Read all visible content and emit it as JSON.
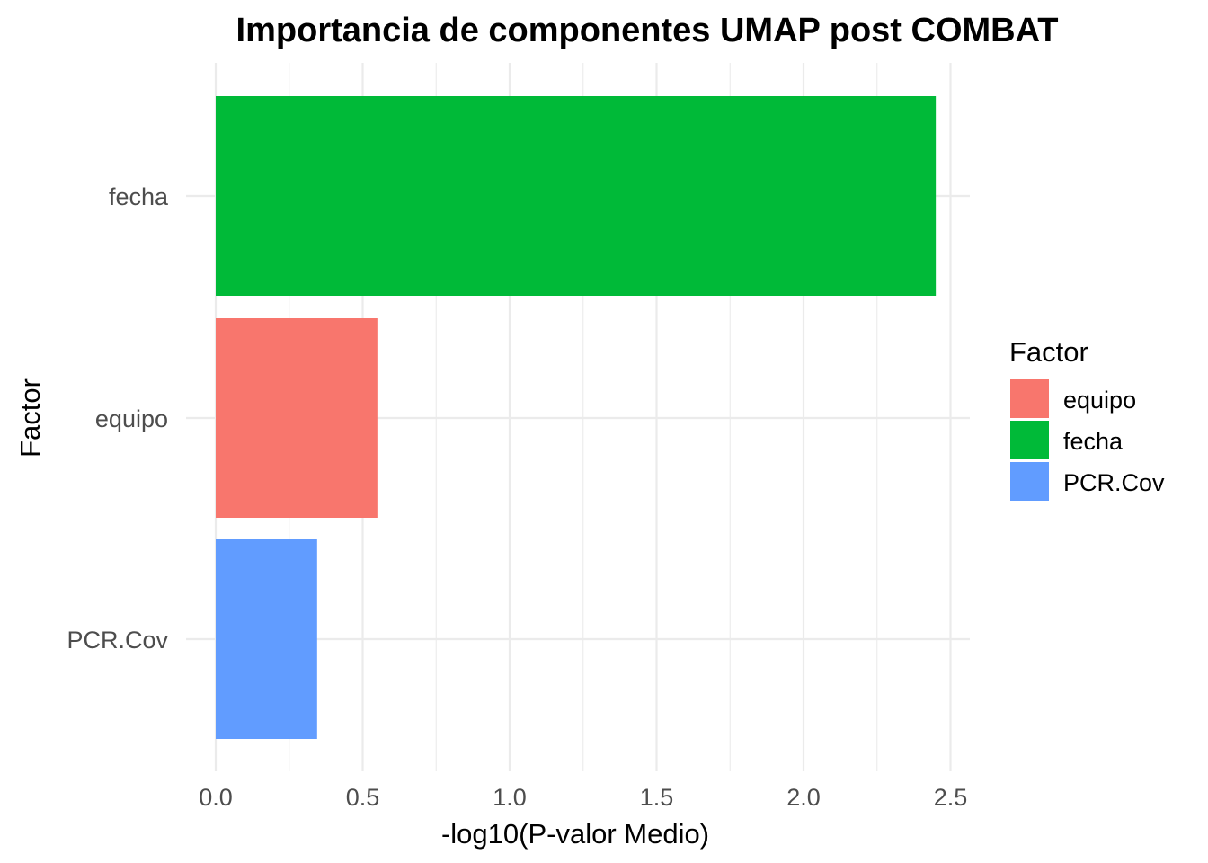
{
  "chart_data": {
    "type": "bar",
    "orientation": "horizontal",
    "title": "Importancia de componentes UMAP post COMBAT",
    "xlabel": "-log10(P-valor Medio)",
    "ylabel": "Factor",
    "categories": [
      "fecha",
      "equipo",
      "PCR.Cov"
    ],
    "values": [
      2.45,
      0.55,
      0.345
    ],
    "colors": [
      "#00BA38",
      "#F8766D",
      "#619CFF"
    ],
    "xlim": [
      0,
      2.5
    ],
    "xticks": [
      "0.0",
      "0.5",
      "1.0",
      "1.5",
      "2.0",
      "2.5"
    ],
    "xtick_values": [
      0,
      0.5,
      1.0,
      1.5,
      2.0,
      2.5
    ],
    "grid": true,
    "legend": {
      "title": "Factor",
      "placement": "right",
      "entries": [
        {
          "label": "equipo",
          "color": "#F8766D"
        },
        {
          "label": "fecha",
          "color": "#00BA38"
        },
        {
          "label": "PCR.Cov",
          "color": "#619CFF"
        }
      ]
    }
  }
}
